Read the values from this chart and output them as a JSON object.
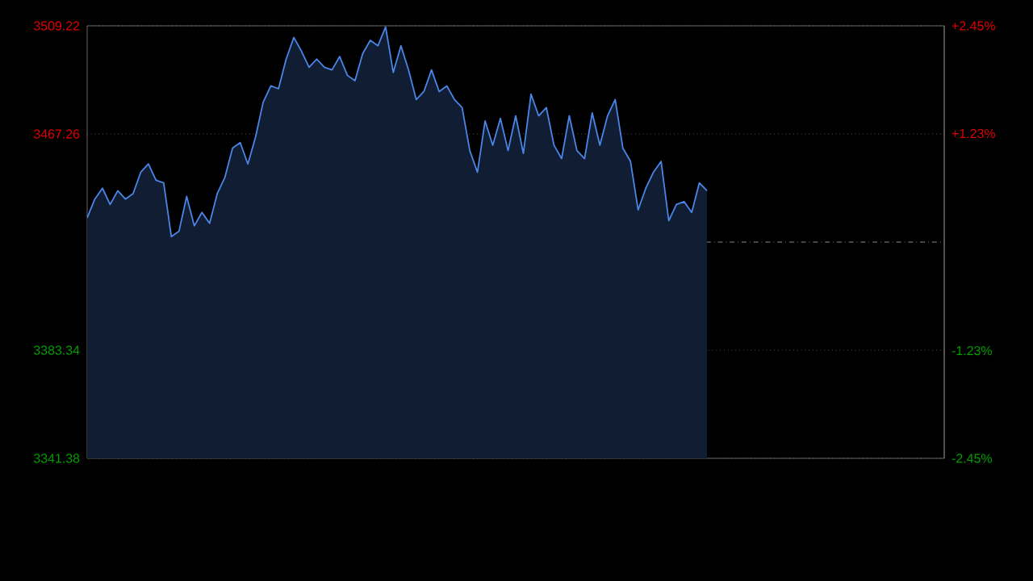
{
  "chart_data": {
    "type": "area",
    "ylim": [
      3341.38,
      3509.22
    ],
    "categories": [
      null,
      null,
      null,
      null,
      null,
      null,
      null,
      null,
      null,
      null,
      null,
      null,
      null,
      null,
      null,
      null,
      null,
      null,
      null,
      null,
      null,
      null,
      null,
      null,
      null,
      null,
      null,
      null,
      null,
      null,
      null,
      null,
      null,
      null,
      null,
      null,
      null,
      null,
      null,
      null,
      null,
      null,
      null,
      null,
      null,
      null,
      null,
      null,
      null,
      null,
      null,
      null,
      null,
      null,
      null,
      null,
      null,
      null,
      null,
      null,
      null,
      null,
      null,
      null,
      null,
      null,
      null,
      null,
      null,
      null,
      null,
      null,
      null,
      null,
      null,
      null,
      null,
      null,
      null,
      null,
      null,
      null,
      null,
      null,
      null,
      null,
      null,
      null,
      null,
      null,
      null,
      null,
      null,
      null,
      null,
      null,
      null,
      null,
      null,
      null,
      null,
      null,
      null,
      null,
      null,
      null,
      null,
      null,
      null,
      null,
      null,
      null,
      null
    ],
    "yticks": [
      3341.38,
      3383.34,
      3467.26,
      3509.22
    ],
    "y2lim": [
      -2.45,
      2.45
    ],
    "y2ticks": [
      {
        "value": -2.45,
        "label": "-2.45%"
      },
      {
        "value": -1.23,
        "label": "-1.23%"
      },
      {
        "value": 1.23,
        "label": "+1.23%"
      },
      {
        "value": 2.45,
        "label": "+2.45%"
      }
    ],
    "tick_labels": "y",
    "grid": "y",
    "ref_lines": [
      {
        "axis": "y",
        "value": 3425.3,
        "color": "#b0b0b0",
        "line_style": "dashed"
      }
    ],
    "series": [
      {
        "color": "#4a86e8",
        "values": [
          3434.7,
          3442.0,
          3446.2,
          3439.9,
          3445.2,
          3442.0,
          3444.1,
          3452.4,
          3455.6,
          3449.3,
          3448.3,
          3427.4,
          3429.5,
          3443.0,
          3431.6,
          3436.8,
          3432.6,
          3444.1,
          3450.4,
          3461.8,
          3463.9,
          3455.6,
          3466.0,
          3479.6,
          3485.9,
          3484.8,
          3496.3,
          3504.7,
          3499.4,
          3493.1,
          3496.3,
          3493.1,
          3492.1,
          3497.3,
          3490.0,
          3487.9,
          3498.4,
          3503.6,
          3501.5,
          3508.8,
          3491.1,
          3501.5,
          3492.1,
          3480.6,
          3483.7,
          3492.1,
          3483.7,
          3485.9,
          3480.6,
          3477.5,
          3460.8,
          3452.4,
          3472.3,
          3462.9,
          3473.3,
          3460.8,
          3474.3,
          3459.7,
          3482.7,
          3474.3,
          3477.5,
          3462.9,
          3457.7,
          3474.3,
          3460.8,
          3457.7,
          3475.4,
          3462.9,
          3474.3,
          3480.6,
          3461.8,
          3456.6,
          3437.8,
          3446.2,
          3452.4,
          3456.6,
          3433.6,
          3439.9,
          3441.0,
          3436.8,
          3448.3,
          3445.2,
          null,
          null,
          null,
          null,
          null,
          null,
          null,
          null,
          null,
          null,
          null,
          null,
          null,
          null,
          null,
          null,
          null,
          null,
          null,
          null,
          null,
          null,
          null,
          null,
          null,
          null,
          null,
          null,
          null,
          null,
          null
        ]
      }
    ]
  }
}
